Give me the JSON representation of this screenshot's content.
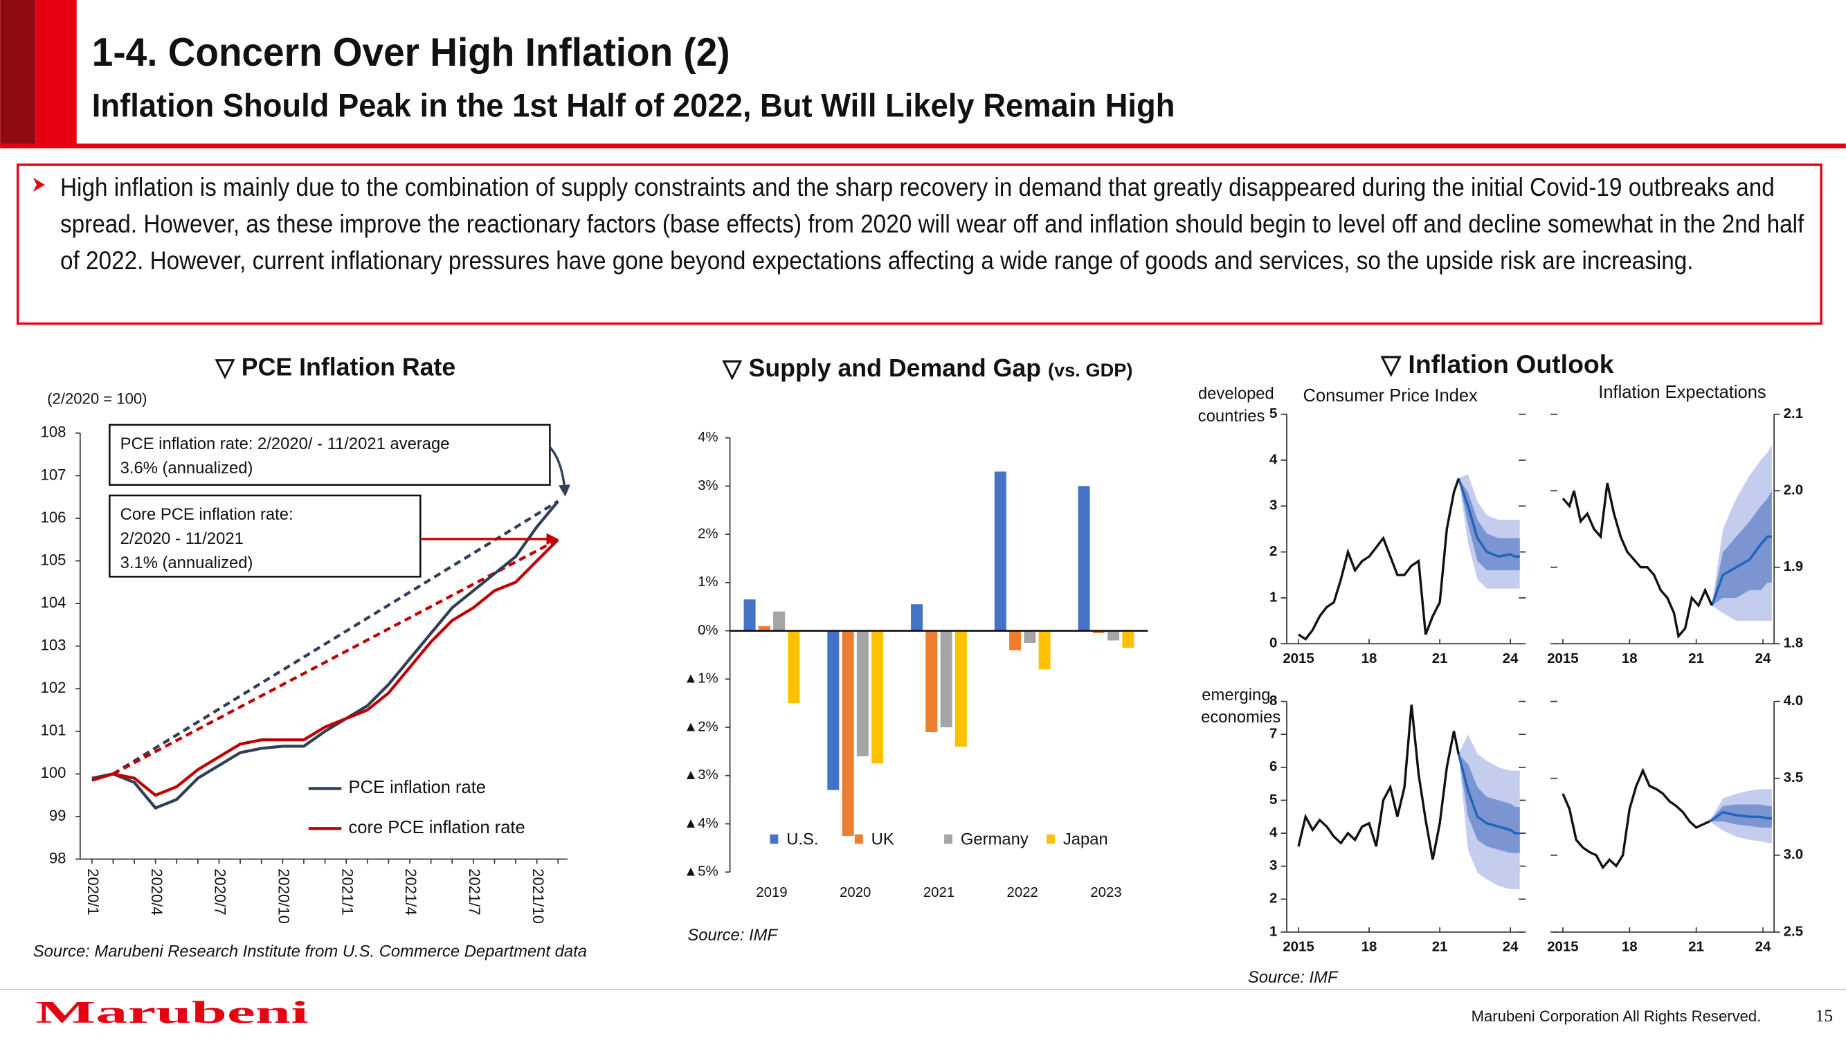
{
  "header": {
    "title": "1-4. Concern Over High Inflation (2)",
    "subtitle": "Inflation Should Peak in the 1st Half of 2022, But Will Likely Remain High"
  },
  "bullet": "High inflation is mainly due to the combination of supply constraints and the sharp recovery in demand that greatly disappeared during the initial Covid-19 outbreaks and spread. However, as these improve the reactionary factors (base effects) from 2020 will wear off and inflation should begin to level off and decline somewhat in the 2nd half of 2022. However, current inflationary pressures have gone beyond expectations affecting a wide range of goods and services, so the upside risk are increasing.",
  "outlook": {
    "title": "▽ Inflation Outlook",
    "column_labels": [
      "Consumer Price Index",
      "Inflation Expectations"
    ],
    "row_labels": [
      [
        "developed",
        "countries"
      ],
      [
        "emerging",
        "economies"
      ]
    ],
    "source": "Source: IMF"
  },
  "footer": {
    "logo": "Marubeni",
    "copyright": "Marubeni Corporation All Rights Reserved.",
    "page": 15
  },
  "chart_data": [
    {
      "type": "line",
      "title": "▽ PCE Inflation Rate",
      "note": "(2/2020 = 100)",
      "source": "Source: Marubeni Research Institute from U.S. Commerce Department data",
      "categories": [
        "2020/1",
        null,
        null,
        "2020/4",
        null,
        null,
        "2020/7",
        null,
        null,
        "2020/10",
        null,
        null,
        "2021/1",
        null,
        null,
        "2021/4",
        null,
        null,
        "2021/7",
        null,
        null,
        "2021/10",
        null
      ],
      "series": [
        {
          "name": "PCE inflation rate",
          "color": "#2f3f56",
          "values": [
            99.9,
            100,
            99.8,
            99.2,
            99.4,
            99.9,
            100.2,
            100.5,
            100.6,
            100.65,
            100.65,
            101.0,
            101.3,
            101.6,
            102.1,
            102.7,
            103.3,
            103.9,
            104.3,
            104.7,
            105.1,
            105.8,
            106.4
          ]
        },
        {
          "name": "core PCE inflation rate",
          "color": "#c00000",
          "values": [
            99.85,
            100,
            99.9,
            99.5,
            99.7,
            100.1,
            100.4,
            100.7,
            100.8,
            100.8,
            100.8,
            101.1,
            101.3,
            101.5,
            101.9,
            102.5,
            103.1,
            103.6,
            103.9,
            104.3,
            104.5,
            105.0,
            105.5
          ]
        }
      ],
      "trend_lines": [
        {
          "color": "#2f3f56",
          "values": [
            100,
            106.4
          ]
        },
        {
          "color": "#c00000",
          "values": [
            100,
            105.5
          ]
        }
      ],
      "annotations": [
        [
          "PCE inflation rate: 2/2020/ - 11/2021 average",
          "3.6% (annualized)"
        ],
        [
          "Core PCE inflation rate:",
          "2/2020 - 11/2021",
          "3.1% (annualized)"
        ]
      ],
      "ylim": [
        98,
        108
      ],
      "yticks": [
        98,
        99,
        100,
        101,
        102,
        103,
        104,
        105,
        106,
        107,
        108
      ]
    },
    {
      "type": "bar",
      "title": "▽ Supply and Demand Gap",
      "subtitle": "(vs. GDP)",
      "source": "Source: IMF",
      "categories": [
        "2019",
        "2020",
        "2021",
        "2022",
        "2023"
      ],
      "series": [
        {
          "name": "U.S.",
          "color": "#4472c4",
          "values": [
            0.65,
            -3.3,
            0.55,
            3.3,
            3.0
          ]
        },
        {
          "name": "UK",
          "color": "#ed7d31",
          "values": [
            0.1,
            -4.25,
            -2.1,
            -0.4,
            -0.05
          ]
        },
        {
          "name": "Germany",
          "color": "#a5a5a5",
          "values": [
            0.4,
            -2.6,
            -2.0,
            -0.25,
            -0.2
          ]
        },
        {
          "name": "Japan",
          "color": "#ffc000",
          "values": [
            -1.5,
            -2.75,
            -2.4,
            -0.8,
            -0.35
          ]
        }
      ],
      "ylim": [
        -5,
        4
      ],
      "yticks": [
        {
          "value": 4,
          "label": "4%"
        },
        {
          "value": 3,
          "label": "3%"
        },
        {
          "value": 2,
          "label": "2%"
        },
        {
          "value": 1,
          "label": "1%"
        },
        {
          "value": 0,
          "label": "0%"
        },
        {
          "value": -1,
          "label": "▲1%"
        },
        {
          "value": -2,
          "label": "▲2%"
        },
        {
          "value": -3,
          "label": "▲3%"
        },
        {
          "value": -4,
          "label": "▲4%"
        },
        {
          "value": -5,
          "label": "▲5%"
        }
      ]
    },
    {
      "type": "fan",
      "colors": {
        "history": "#111111",
        "median": "#1f64b8",
        "inner": "#7b95d2",
        "outer": "#c4cdee"
      },
      "xlim": [
        2014.5,
        2024.5
      ],
      "xticks": [
        2015,
        {
          "value": 2018,
          "label": "18"
        },
        {
          "value": 2021,
          "label": "21"
        },
        {
          "value": 2024,
          "label": "24"
        }
      ],
      "ylim": [
        0,
        5
      ],
      "yticks": [
        0,
        1,
        2,
        3,
        4,
        5
      ],
      "history": {
        "x": [
          2015.0,
          2015.3,
          2015.6,
          2015.9,
          2016.2,
          2016.5,
          2016.8,
          2017.1,
          2017.4,
          2017.7,
          2018.0,
          2018.3,
          2018.6,
          2018.9,
          2019.2,
          2019.5,
          2019.8,
          2020.1,
          2020.4,
          2020.7,
          2021.0,
          2021.3,
          2021.6,
          2021.8
        ],
        "values": [
          0.2,
          0.1,
          0.3,
          0.6,
          0.8,
          0.9,
          1.4,
          2.0,
          1.6,
          1.8,
          1.9,
          2.1,
          2.3,
          1.9,
          1.5,
          1.5,
          1.7,
          1.8,
          0.2,
          0.6,
          0.9,
          2.5,
          3.3,
          3.6
        ]
      },
      "forecast": {
        "x": [
          2021.8,
          2022.2,
          2022.6,
          2023.0,
          2023.5,
          2024.0,
          2024.2,
          2024.4
        ],
        "median": [
          3.6,
          3.0,
          2.3,
          2.0,
          1.9,
          1.95,
          1.9,
          1.9
        ],
        "inner_low": [
          3.6,
          2.6,
          1.8,
          1.6,
          1.6,
          1.6,
          1.6,
          1.6
        ],
        "inner_high": [
          3.6,
          3.3,
          2.7,
          2.4,
          2.3,
          2.3,
          2.3,
          2.3
        ],
        "outer_low": [
          3.6,
          2.2,
          1.4,
          1.2,
          1.2,
          1.2,
          1.2,
          1.2
        ],
        "outer_high": [
          3.6,
          3.7,
          3.1,
          2.8,
          2.7,
          2.7,
          2.7,
          2.7
        ]
      }
    },
    {
      "type": "fan",
      "colors": {
        "history": "#111111",
        "median": "#1f64b8",
        "inner": "#7b95d2",
        "outer": "#c4cdee"
      },
      "xlim": [
        2014.6,
        2024.5
      ],
      "xticks": [
        2015,
        {
          "value": 2018,
          "label": "18"
        },
        {
          "value": 2021,
          "label": "21"
        },
        {
          "value": 2024,
          "label": "24"
        }
      ],
      "ylim": [
        1.8,
        2.1
      ],
      "yticks": [
        1.8,
        1.9,
        {
          "value": 2.0,
          "label": "2.0"
        },
        2.1
      ],
      "history": {
        "x": [
          2015.0,
          2015.3,
          2015.5,
          2015.8,
          2016.1,
          2016.4,
          2016.7,
          2017.0,
          2017.3,
          2017.6,
          2017.9,
          2018.2,
          2018.5,
          2018.8,
          2019.1,
          2019.4,
          2019.7,
          2020.0,
          2020.2,
          2020.5,
          2020.8,
          2021.1,
          2021.4,
          2021.7
        ],
        "values": [
          1.99,
          1.98,
          2.0,
          1.96,
          1.97,
          1.95,
          1.94,
          2.01,
          1.97,
          1.94,
          1.92,
          1.91,
          1.9,
          1.9,
          1.89,
          1.87,
          1.86,
          1.84,
          1.81,
          1.82,
          1.86,
          1.85,
          1.87,
          1.85
        ]
      },
      "forecast": {
        "x": [
          2021.7,
          2022.2,
          2022.8,
          2023.4,
          2023.9,
          2024.2,
          2024.4
        ],
        "median": [
          1.85,
          1.89,
          1.9,
          1.91,
          1.93,
          1.94,
          1.94
        ],
        "inner_low": [
          1.85,
          1.86,
          1.86,
          1.87,
          1.87,
          1.88,
          1.88
        ],
        "inner_high": [
          1.85,
          1.92,
          1.94,
          1.96,
          1.98,
          1.99,
          2.0
        ],
        "outer_low": [
          1.85,
          1.84,
          1.83,
          1.83,
          1.83,
          1.83,
          1.83
        ],
        "outer_high": [
          1.85,
          1.95,
          1.99,
          2.02,
          2.04,
          2.05,
          2.06
        ]
      }
    },
    {
      "type": "fan",
      "colors": {
        "history": "#111111",
        "median": "#1f64b8",
        "inner": "#7b95d2",
        "outer": "#c4cdee"
      },
      "xlim": [
        2014.5,
        2024.5
      ],
      "xticks": [
        2015,
        {
          "value": 2018,
          "label": "18"
        },
        {
          "value": 2021,
          "label": "21"
        },
        {
          "value": 2024,
          "label": "24"
        }
      ],
      "ylim": [
        1,
        8
      ],
      "yticks": [
        1,
        2,
        3,
        4,
        5,
        6,
        7,
        8
      ],
      "history": {
        "x": [
          2015.0,
          2015.3,
          2015.6,
          2015.9,
          2016.2,
          2016.5,
          2016.8,
          2017.1,
          2017.4,
          2017.7,
          2018.0,
          2018.3,
          2018.6,
          2018.9,
          2019.2,
          2019.5,
          2019.8,
          2020.1,
          2020.4,
          2020.7,
          2021.0,
          2021.3,
          2021.6,
          2021.8
        ],
        "values": [
          3.6,
          4.5,
          4.1,
          4.4,
          4.2,
          3.9,
          3.7,
          4.0,
          3.8,
          4.2,
          4.3,
          3.6,
          5.0,
          5.4,
          4.5,
          5.4,
          7.9,
          5.8,
          4.4,
          3.2,
          4.3,
          6.0,
          7.1,
          6.4
        ]
      },
      "forecast": {
        "x": [
          2021.8,
          2022.2,
          2022.6,
          2023.0,
          2023.5,
          2024.0,
          2024.2,
          2024.4
        ],
        "median": [
          6.4,
          5.3,
          4.5,
          4.3,
          4.2,
          4.1,
          4.0,
          4.0
        ],
        "inner_low": [
          6.4,
          4.5,
          3.8,
          3.6,
          3.5,
          3.4,
          3.4,
          3.4
        ],
        "inner_high": [
          6.4,
          6.1,
          5.4,
          5.1,
          5.0,
          4.9,
          4.8,
          4.8
        ],
        "outer_low": [
          6.4,
          3.5,
          2.8,
          2.6,
          2.4,
          2.3,
          2.3,
          2.3
        ],
        "outer_high": [
          6.4,
          7.0,
          6.4,
          6.2,
          6.0,
          5.9,
          5.9,
          5.9
        ]
      }
    },
    {
      "type": "fan",
      "colors": {
        "history": "#111111",
        "median": "#1f64b8",
        "inner": "#7b95d2",
        "outer": "#c4cdee"
      },
      "xlim": [
        2014.6,
        2024.5
      ],
      "xticks": [
        2015,
        {
          "value": 2018,
          "label": "18"
        },
        {
          "value": 2021,
          "label": "21"
        },
        {
          "value": 2024,
          "label": "24"
        }
      ],
      "ylim": [
        2.5,
        4.0
      ],
      "yticks": [
        2.5,
        {
          "value": 3.0,
          "label": "3.0"
        },
        3.5,
        {
          "value": 4.0,
          "label": "4.0"
        }
      ],
      "history": {
        "x": [
          2015.0,
          2015.3,
          2015.6,
          2015.9,
          2016.2,
          2016.5,
          2016.8,
          2017.1,
          2017.4,
          2017.7,
          2018.0,
          2018.3,
          2018.6,
          2018.9,
          2019.2,
          2019.5,
          2019.8,
          2020.1,
          2020.4,
          2020.7,
          2021.0,
          2021.3,
          2021.6
        ],
        "values": [
          3.4,
          3.3,
          3.1,
          3.05,
          3.02,
          3.0,
          2.92,
          2.97,
          2.93,
          3.0,
          3.3,
          3.45,
          3.55,
          3.45,
          3.43,
          3.4,
          3.35,
          3.32,
          3.28,
          3.22,
          3.18,
          3.2,
          3.22
        ]
      },
      "forecast": {
        "x": [
          2021.6,
          2022.2,
          2022.8,
          2023.4,
          2023.9,
          2024.2,
          2024.4
        ],
        "median": [
          3.22,
          3.28,
          3.26,
          3.25,
          3.25,
          3.24,
          3.24
        ],
        "inner_low": [
          3.22,
          3.22,
          3.2,
          3.19,
          3.18,
          3.18,
          3.18
        ],
        "inner_high": [
          3.22,
          3.32,
          3.33,
          3.33,
          3.33,
          3.32,
          3.32
        ],
        "outer_low": [
          3.22,
          3.16,
          3.12,
          3.1,
          3.09,
          3.08,
          3.08
        ],
        "outer_high": [
          3.22,
          3.37,
          3.4,
          3.42,
          3.43,
          3.43,
          3.43
        ]
      }
    }
  ]
}
